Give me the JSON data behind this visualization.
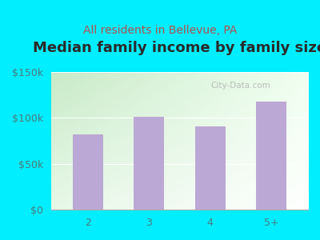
{
  "title": "Median family income by family size",
  "subtitle": "All residents in Bellevue, PA",
  "categories": [
    "2",
    "3",
    "4",
    "5+"
  ],
  "values": [
    82000,
    101000,
    91000,
    118000
  ],
  "bar_color": "#bba8d4",
  "bar_edge_color": "#bba8d4",
  "background_outer": "#00eeff",
  "background_inner_left": "#c8eac8",
  "background_inner_right": "#f0fff0",
  "title_color": "#2a2a2a",
  "subtitle_color": "#b05050",
  "tick_color": "#4a7a7a",
  "ylim": [
    0,
    150000
  ],
  "yticks": [
    0,
    50000,
    100000,
    150000
  ],
  "ytick_labels": [
    "$0",
    "$50k",
    "$100k",
    "$150k"
  ],
  "title_fontsize": 13,
  "subtitle_fontsize": 10,
  "tick_fontsize": 9,
  "watermark": "City-Data.com",
  "bar_width": 0.5
}
